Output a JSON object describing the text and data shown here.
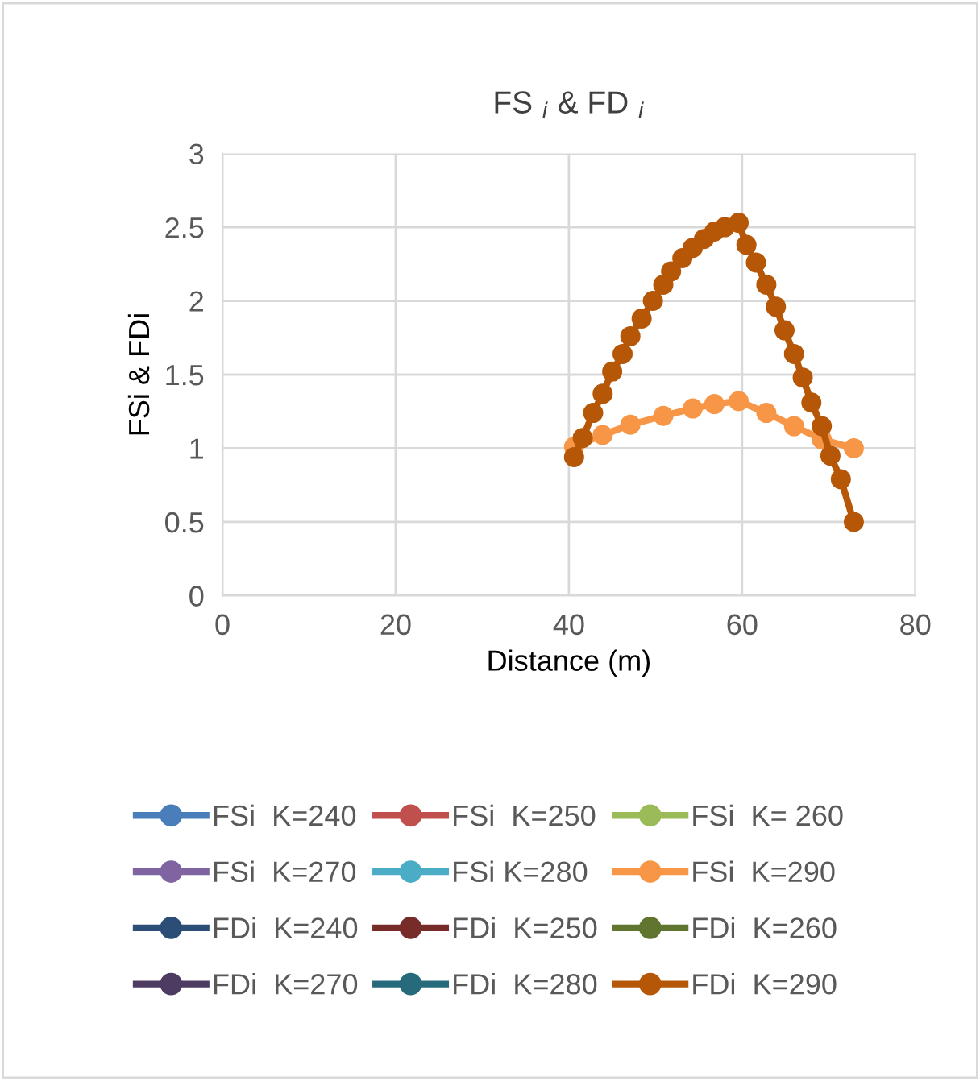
{
  "chart_data": {
    "type": "line",
    "title": "FS $_{i}$ & FD $_{i}$",
    "xlabel": "Distance (m)",
    "ylabel": "FSi & FDi",
    "xlim": [
      0,
      80
    ],
    "xticks": [
      0,
      20,
      40,
      60,
      80
    ],
    "ylim": [
      0,
      3
    ],
    "yticks": [
      0,
      0.5,
      1,
      1.5,
      2,
      2.5,
      3
    ],
    "grid": true,
    "legend": "bottom",
    "marker": "circle",
    "line_style": "solid",
    "series": [
      {
        "name": "FSi  K=240",
        "color": "#4a7ebb",
        "values": [
          null,
          null,
          null,
          null,
          null,
          null,
          null,
          null,
          null,
          null,
          null,
          null,
          null,
          null,
          null,
          null,
          null,
          null,
          null,
          null,
          null,
          null,
          null,
          null,
          null,
          null,
          null,
          null,
          null
        ]
      },
      {
        "name": "FSi  K=250",
        "color": "#c0504d",
        "values": [
          null,
          null,
          null,
          null,
          null,
          null,
          null,
          null,
          null,
          null,
          null,
          null,
          null,
          null,
          null,
          null,
          null,
          null,
          null,
          null,
          null,
          null,
          null,
          null,
          null,
          null,
          null,
          null,
          null
        ]
      },
      {
        "name": "FSi  K= 260",
        "color": "#9bbb59",
        "values": [
          null,
          null,
          null,
          null,
          null,
          null,
          null,
          null,
          null,
          null,
          null,
          null,
          null,
          null,
          null,
          null,
          null,
          null,
          null,
          null,
          null,
          null,
          null,
          null,
          null,
          null,
          null,
          null,
          null
        ]
      },
      {
        "name": "FSi  K=270",
        "color": "#8064a2",
        "values": [
          null,
          null,
          null,
          null,
          null,
          null,
          null,
          null,
          null,
          null,
          null,
          null,
          null,
          null,
          null,
          null,
          null,
          null,
          null,
          null,
          null,
          null,
          null,
          null,
          null,
          null,
          null,
          null,
          null
        ]
      },
      {
        "name": "FSi K=280",
        "color": "#4bacc6",
        "values": [
          null,
          null,
          null,
          null,
          null,
          null,
          null,
          null,
          null,
          null,
          null,
          null,
          null,
          null,
          null,
          null,
          null,
          null,
          null,
          null,
          null,
          null,
          null,
          null,
          null,
          null,
          null,
          null,
          null
        ]
      },
      {
        "name": "FSi  K=290",
        "color": "#f79646",
        "x": [
          40.6,
          43.9,
          47.1,
          50.9,
          54.3,
          56.8,
          59.6,
          62.8,
          66.0,
          69.2,
          72.9
        ],
        "values": [
          1.01,
          1.09,
          1.16,
          1.22,
          1.27,
          1.3,
          1.32,
          1.24,
          1.15,
          1.06,
          1.0
        ]
      },
      {
        "name": "FDi  K=240",
        "color": "#2c4d75",
        "values": [
          null,
          null,
          null,
          null,
          null,
          null,
          null,
          null,
          null,
          null,
          null,
          null,
          null,
          null,
          null,
          null,
          null,
          null,
          null,
          null,
          null,
          null,
          null,
          null,
          null,
          null,
          null,
          null,
          null
        ]
      },
      {
        "name": "FDi  K=250",
        "color": "#772c2a",
        "values": [
          null,
          null,
          null,
          null,
          null,
          null,
          null,
          null,
          null,
          null,
          null,
          null,
          null,
          null,
          null,
          null,
          null,
          null,
          null,
          null,
          null,
          null,
          null,
          null,
          null,
          null,
          null,
          null,
          null
        ]
      },
      {
        "name": "FDi  K=260",
        "color": "#5f7530",
        "values": [
          null,
          null,
          null,
          null,
          null,
          null,
          null,
          null,
          null,
          null,
          null,
          null,
          null,
          null,
          null,
          null,
          null,
          null,
          null,
          null,
          null,
          null,
          null,
          null,
          null,
          null,
          null,
          null,
          null
        ]
      },
      {
        "name": "FDi  K=270",
        "color": "#4d3b62",
        "values": [
          null,
          null,
          null,
          null,
          null,
          null,
          null,
          null,
          null,
          null,
          null,
          null,
          null,
          null,
          null,
          null,
          null,
          null,
          null,
          null,
          null,
          null,
          null,
          null,
          null,
          null,
          null,
          null,
          null
        ]
      },
      {
        "name": "FDi  K=280",
        "color": "#276a7c",
        "values": [
          null,
          null,
          null,
          null,
          null,
          null,
          null,
          null,
          null,
          null,
          null,
          null,
          null,
          null,
          null,
          null,
          null,
          null,
          null,
          null,
          null,
          null,
          null,
          null,
          null,
          null,
          null,
          null,
          null
        ]
      },
      {
        "name": "FDi  K=290",
        "color": "#b65708",
        "x": [
          40.6,
          41.6,
          42.8,
          43.9,
          45.0,
          46.2,
          47.1,
          48.4,
          49.7,
          50.9,
          51.8,
          53.1,
          54.3,
          55.6,
          56.8,
          58.0,
          59.6,
          60.5,
          61.6,
          62.8,
          63.9,
          64.9,
          66.0,
          67.0,
          68.0,
          69.2,
          70.2,
          71.4,
          72.9
        ],
        "values": [
          0.94,
          1.07,
          1.24,
          1.37,
          1.52,
          1.64,
          1.76,
          1.88,
          2.0,
          2.11,
          2.2,
          2.29,
          2.36,
          2.42,
          2.47,
          2.5,
          2.53,
          2.38,
          2.26,
          2.11,
          1.96,
          1.8,
          1.64,
          1.48,
          1.31,
          1.15,
          0.95,
          0.79,
          0.5
        ]
      }
    ]
  }
}
